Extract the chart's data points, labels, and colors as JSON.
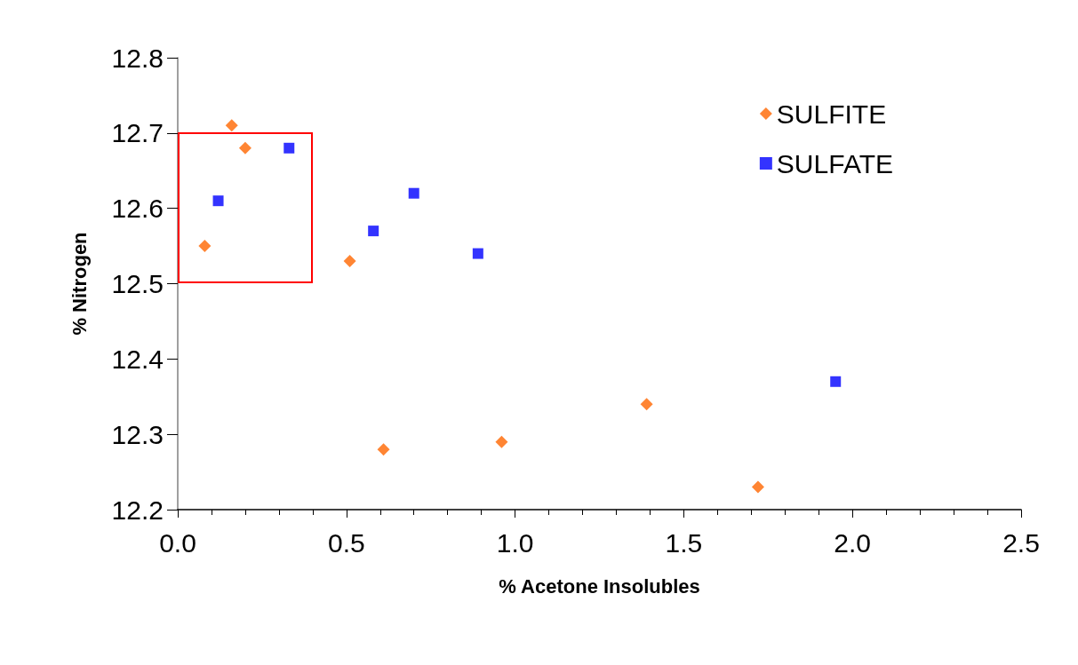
{
  "chart_data": {
    "type": "scatter",
    "xlabel": "% Acetone Insolubles",
    "ylabel": "% Nitrogen",
    "series": [
      {
        "name": "SULFITE",
        "color": "#ff6600",
        "marker": "diamond",
        "x": [
          0.08,
          0.16,
          0.2,
          0.51,
          0.61,
          0.96,
          1.39,
          1.72
        ],
        "values": [
          12.55,
          12.71,
          12.68,
          12.53,
          12.28,
          12.29,
          12.34,
          12.23
        ]
      },
      {
        "name": "SULFATE",
        "color": "#0000ff",
        "marker": "square",
        "x": [
          0.12,
          0.33,
          0.58,
          0.7,
          0.89,
          1.95
        ],
        "values": [
          12.61,
          12.68,
          12.57,
          12.62,
          12.54,
          12.37
        ]
      }
    ],
    "xlim": [
      0,
      2.5
    ],
    "xticks": [
      {
        "value": 0,
        "label": "0.0"
      },
      0.5,
      {
        "value": 1,
        "label": "1.0"
      },
      1.5,
      {
        "value": 2,
        "label": "2.0"
      },
      2.5
    ],
    "ylim": [
      12.2,
      12.8
    ],
    "yticks": [
      12.2,
      12.3,
      12.4,
      12.5,
      12.6,
      12.7,
      12.8
    ],
    "grid": false,
    "legend": "top right"
  }
}
